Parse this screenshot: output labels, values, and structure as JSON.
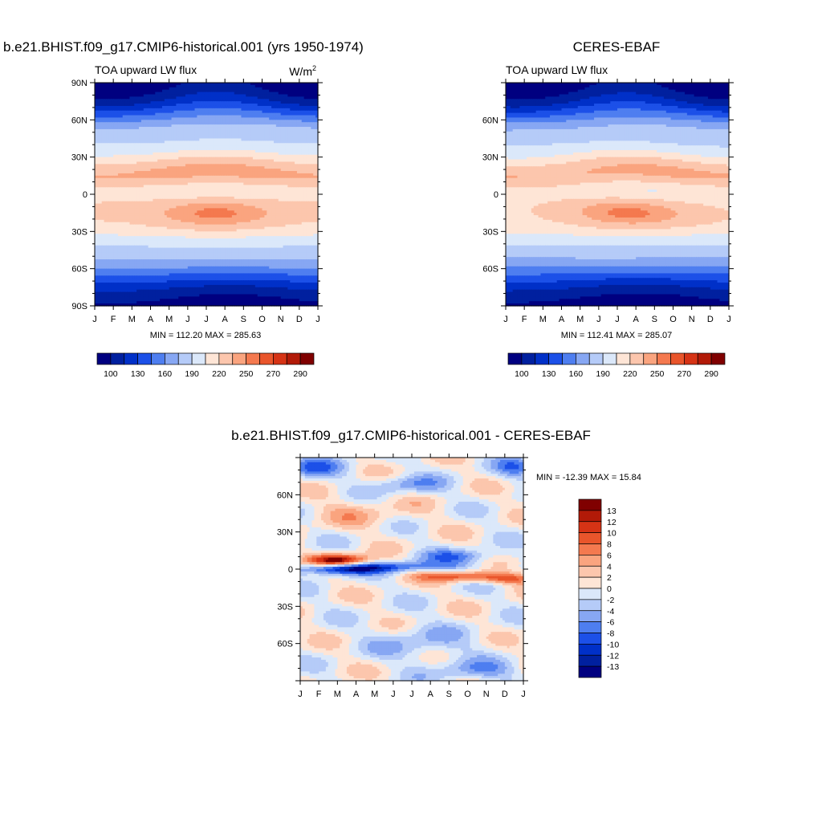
{
  "panels": [
    {
      "id": "model",
      "title": "b.e21.BHIST.f09_g17.CMIP6-historical.001 (yrs 1950-1974)",
      "left_string": "TOA upward LW flux",
      "units_base": "W/m",
      "units_exp": "2",
      "stats": "MIN = 112.20 MAX = 285.63",
      "y_ticks": [
        "90N",
        "60N",
        "30N",
        "0",
        "30S",
        "60S",
        "90S"
      ]
    },
    {
      "id": "obs",
      "title": "CERES-EBAF",
      "left_string": "TOA upward LW flux",
      "units_base": "",
      "units_exp": "",
      "stats": "MIN = 112.41 MAX = 285.07",
      "y_ticks": [
        "",
        "60N",
        "30N",
        "0",
        "30S",
        "60S",
        ""
      ]
    }
  ],
  "months": [
    "J",
    "F",
    "M",
    "A",
    "M",
    "J",
    "J",
    "A",
    "S",
    "O",
    "N",
    "D",
    "J"
  ],
  "colorbar_abs": {
    "labels": [
      "100",
      "130",
      "160",
      "190",
      "220",
      "250",
      "270",
      "290"
    ],
    "colors": [
      "#000080",
      "#00209f",
      "#0030c8",
      "#1c50e8",
      "#4e7ef0",
      "#87a7f3",
      "#b5cbf8",
      "#dbe8fa",
      "#fee5d6",
      "#fcc6ad",
      "#faa47f",
      "#f4794f",
      "#e9552b",
      "#d63315",
      "#b21a08",
      "#800000"
    ]
  },
  "diff": {
    "title": "b.e21.BHIST.f09_g17.CMIP6-historical.001 - CERES-EBAF",
    "stats": "MIN = -12.39 MAX =  15.84",
    "y_ticks": [
      "",
      "60N",
      "30N",
      "0",
      "30S",
      "60S",
      ""
    ],
    "colorbar_labels": [
      "13",
      "12",
      "10",
      "8",
      "6",
      "4",
      "2",
      "0",
      "-2",
      "-4",
      "-6",
      "-8",
      "-10",
      "-12",
      "-13"
    ],
    "colorbar_colors": [
      "#800000",
      "#b21a08",
      "#d63315",
      "#e9552b",
      "#f4794f",
      "#faa47f",
      "#fcc6ad",
      "#fee5d6",
      "#dbe8fa",
      "#b5cbf8",
      "#87a7f3",
      "#4e7ef0",
      "#1c50e8",
      "#0030c8",
      "#00209f",
      "#000080"
    ]
  },
  "chart_data": [
    {
      "type": "heatmap",
      "title": "b.e21.BHIST.f09_g17.CMIP6-historical.001 (yrs 1950-1974)",
      "subtitle": "TOA upward LW flux",
      "units": "W/m2",
      "x": [
        "J",
        "F",
        "M",
        "A",
        "M",
        "J",
        "J",
        "A",
        "S",
        "O",
        "N",
        "D",
        "J"
      ],
      "y": [
        "90N",
        "60N",
        "30N",
        "0",
        "30S",
        "60S",
        "90S"
      ],
      "min": 112.2,
      "max": 285.63,
      "levels": [
        100,
        110,
        130,
        145,
        160,
        175,
        190,
        205,
        220,
        235,
        250,
        260,
        270,
        280,
        290
      ],
      "features": {
        "max_band_lat_north": 17,
        "max_band_lat_south": -15,
        "min_region": "Antarctic austral winter (Jul-Sep)"
      }
    },
    {
      "type": "heatmap",
      "title": "CERES-EBAF",
      "subtitle": "TOA upward LW flux",
      "x": [
        "J",
        "F",
        "M",
        "A",
        "M",
        "J",
        "J",
        "A",
        "S",
        "O",
        "N",
        "D",
        "J"
      ],
      "y": [
        "60N",
        "30N",
        "0",
        "30S",
        "60S"
      ],
      "min": 112.41,
      "max": 285.07,
      "levels": [
        100,
        110,
        130,
        145,
        160,
        175,
        190,
        205,
        220,
        235,
        250,
        260,
        270,
        280,
        290
      ]
    },
    {
      "type": "heatmap",
      "title": "b.e21.BHIST.f09_g17.CMIP6-historical.001 - CERES-EBAF",
      "x": [
        "J",
        "F",
        "M",
        "A",
        "M",
        "J",
        "J",
        "A",
        "S",
        "O",
        "N",
        "D",
        "J"
      ],
      "y": [
        "60N",
        "30N",
        "0",
        "30S",
        "60S"
      ],
      "min": -12.39,
      "max": 15.84,
      "levels": [
        -13,
        -12,
        -10,
        -8,
        -6,
        -4,
        -2,
        0,
        2,
        4,
        6,
        8,
        10,
        12,
        13
      ],
      "features": {
        "max_positive": "near 5N in Mar-Apr",
        "negative_band": "near equator Feb-May",
        "positive_band_south": "near 10S Sep-Dec"
      }
    }
  ]
}
